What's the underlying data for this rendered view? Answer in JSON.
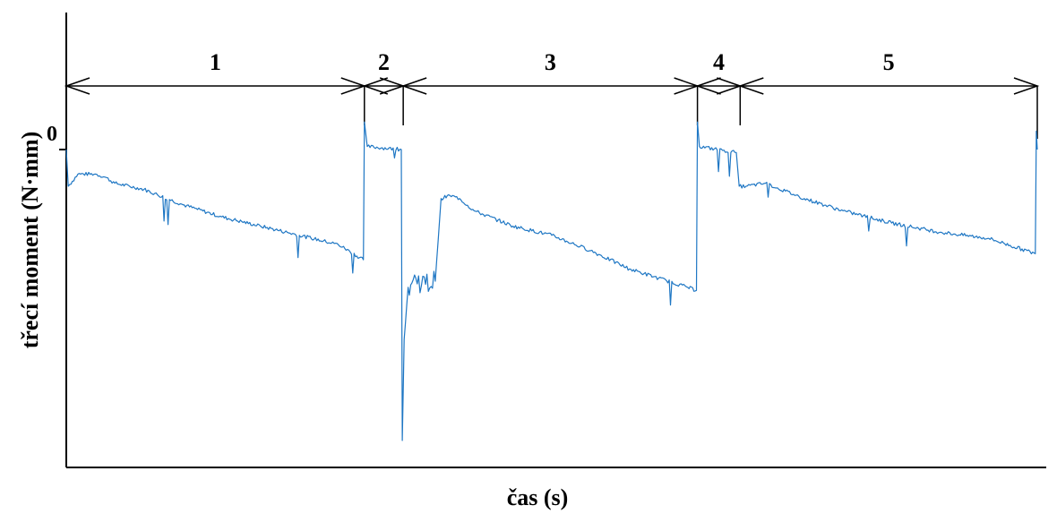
{
  "chart_data": {
    "type": "line",
    "title": "",
    "xlabel": "čas (s)",
    "ylabel": "třecí moment (N·mm)",
    "y_zero_label": "0",
    "grid": false,
    "legend": "none",
    "line_color": "#1f77c4",
    "x_axis_ticks": "none",
    "phases": [
      {
        "label": "1",
        "x_start": 0.0,
        "x_end": 0.307
      },
      {
        "label": "2",
        "x_start": 0.307,
        "x_end": 0.347
      },
      {
        "label": "3",
        "x_start": 0.347,
        "x_end": 0.65
      },
      {
        "label": "4",
        "x_start": 0.65,
        "x_end": 0.694
      },
      {
        "label": "5",
        "x_start": 0.694,
        "x_end": 1.0
      }
    ],
    "series": [
      {
        "points": [
          [
            0.0,
            0.0
          ],
          [
            0.002,
            -0.12
          ],
          [
            0.012,
            -0.08
          ],
          [
            0.03,
            -0.08
          ],
          [
            0.04,
            -0.09
          ],
          [
            0.05,
            -0.11
          ],
          [
            0.08,
            -0.13
          ],
          [
            0.12,
            -0.18
          ],
          [
            0.16,
            -0.22
          ],
          [
            0.2,
            -0.25
          ],
          [
            0.24,
            -0.28
          ],
          [
            0.28,
            -0.31
          ],
          [
            0.306,
            -0.36
          ],
          [
            0.307,
            0.09
          ],
          [
            0.31,
            0.01
          ],
          [
            0.345,
            0.0
          ],
          [
            0.346,
            -0.95
          ],
          [
            0.348,
            -0.62
          ],
          [
            0.352,
            -0.45
          ],
          [
            0.36,
            -0.42
          ],
          [
            0.37,
            -0.44
          ],
          [
            0.38,
            -0.43
          ],
          [
            0.386,
            -0.16
          ],
          [
            0.395,
            -0.15
          ],
          [
            0.405,
            -0.16
          ],
          [
            0.42,
            -0.2
          ],
          [
            0.46,
            -0.25
          ],
          [
            0.5,
            -0.28
          ],
          [
            0.54,
            -0.33
          ],
          [
            0.58,
            -0.39
          ],
          [
            0.61,
            -0.42
          ],
          [
            0.64,
            -0.45
          ],
          [
            0.649,
            -0.46
          ],
          [
            0.65,
            0.09
          ],
          [
            0.652,
            0.01
          ],
          [
            0.69,
            -0.01
          ],
          [
            0.693,
            -0.12
          ],
          [
            0.7,
            -0.12
          ],
          [
            0.72,
            -0.11
          ],
          [
            0.76,
            -0.16
          ],
          [
            0.8,
            -0.2
          ],
          [
            0.85,
            -0.24
          ],
          [
            0.9,
            -0.27
          ],
          [
            0.95,
            -0.29
          ],
          [
            0.998,
            -0.34
          ],
          [
            0.999,
            0.06
          ],
          [
            1.0,
            0.0
          ]
        ]
      }
    ]
  }
}
